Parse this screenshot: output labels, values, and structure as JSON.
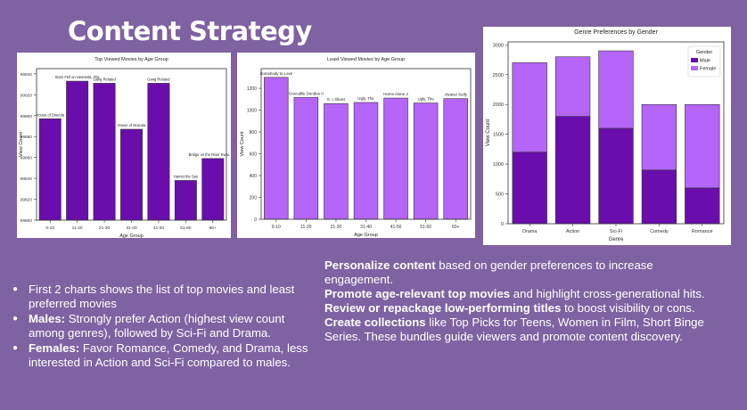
{
  "page": {
    "title": "Content Strategy"
  },
  "chart_data": [
    {
      "type": "bar",
      "title": "Top Viewed Movies by Age Group",
      "xlabel": "Age Group",
      "ylabel": "View Count",
      "categories": [
        "0-10",
        "11-20",
        "21-30",
        "31-40",
        "41-50",
        "51-60",
        "60+"
      ],
      "values": [
        99897,
        99933,
        99931,
        99887,
        99931,
        99838,
        99859
      ],
      "bar_labels": [
        "House of Dracula",
        "Stars Fell on Henrietta, The",
        "Gang Related",
        "House of Dracula",
        "Gang Related",
        "Harriet the Spy",
        "Bridge on the River Kwai, The"
      ],
      "ylim": [
        99800,
        99945
      ],
      "yticks": [
        99800,
        99820,
        99840,
        99860,
        99880,
        99900,
        99920,
        99940
      ],
      "color": "#6a0dad"
    },
    {
      "type": "bar",
      "title": "Least Viewed Movies by Age Group",
      "xlabel": "Age Group",
      "ylabel": "View Count",
      "categories": [
        "0-10",
        "11-20",
        "21-30",
        "31-40",
        "41-50",
        "51-60",
        "60+"
      ],
      "values": [
        1300,
        1115,
        1060,
        1070,
        1110,
        1065,
        1105
      ],
      "bar_labels": [
        "Somebody to Love",
        "Crocodile Dundee II",
        "G. I. Blues",
        "Ugly, The",
        "Home Alone 2",
        "Ugly, The",
        "Alvarez Kelly"
      ],
      "ylim": [
        0,
        1380
      ],
      "yticks": [
        0,
        200,
        400,
        600,
        800,
        1000,
        1200
      ],
      "color": "#b565f7"
    },
    {
      "type": "bar",
      "stacked": true,
      "title": "Genre Preferences by Gender",
      "xlabel": "Genre",
      "ylabel": "View Count",
      "categories": [
        "Drama",
        "Action",
        "Sci-Fi",
        "Comedy",
        "Romance"
      ],
      "series": [
        {
          "name": "Male",
          "values": [
            1200,
            1800,
            1600,
            900,
            600
          ],
          "color": "#6a0dad"
        },
        {
          "name": "Female",
          "values": [
            1500,
            1000,
            1300,
            1100,
            1400
          ],
          "color": "#b565f7"
        }
      ],
      "legend": {
        "title": "Gender",
        "placement": "top-right"
      },
      "ylim": [
        0,
        3050
      ],
      "yticks": [
        0,
        500,
        1000,
        1500,
        2000,
        2500,
        3000
      ]
    }
  ],
  "insights": [
    {
      "bold": "",
      "text": "First 2 charts shows the list of top movies and least preferred movies"
    },
    {
      "bold": "Males:",
      "text": " Strongly prefer Action (highest view count among genres), followed by Sci-Fi and Drama."
    },
    {
      "bold": "Females:",
      "text": " Favor Romance, Comedy, and Drama, less interested in Action and Sci-Fi compared to males."
    }
  ],
  "actions": [
    {
      "bold": "Personalize content",
      "text": " based on gender preferences to increase engagement."
    },
    {
      "bold": "Promote age-relevant top movies",
      "text": " and highlight cross-generational hits."
    },
    {
      "bold": "Review or repackage low-performing titles",
      "text": " to boost visibility or cons."
    },
    {
      "bold": "Create collections",
      "text": " like Top Picks for Teens, Women in Film, Short Binge Series. These bundles guide viewers and promote content discovery."
    }
  ]
}
